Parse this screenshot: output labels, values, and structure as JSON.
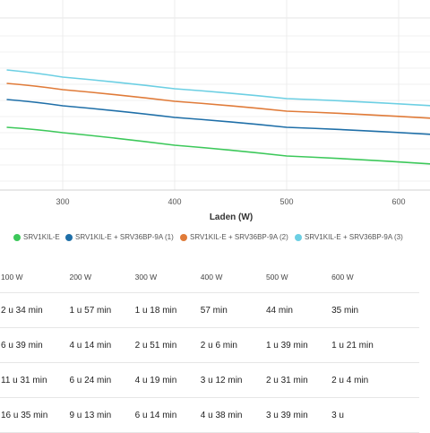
{
  "chart_data": {
    "type": "line",
    "xlabel": "Laden (W)",
    "x_ticks": [
      300,
      400,
      500,
      600
    ],
    "x_range": [
      250,
      630
    ],
    "grid": true,
    "legend_position": "bottom",
    "series": [
      {
        "name": "SRV1KIL-E",
        "color": "#3cc85a",
        "points": [
          [
            250,
            142
          ],
          [
            300,
            148
          ],
          [
            400,
            162
          ],
          [
            500,
            174
          ],
          [
            630,
            183
          ]
        ]
      },
      {
        "name": "SRV1KIL-E + SRV36BP-9A (1)",
        "color": "#1f6fa8",
        "points": [
          [
            250,
            111
          ],
          [
            300,
            118
          ],
          [
            400,
            131
          ],
          [
            500,
            142
          ],
          [
            630,
            150
          ]
        ]
      },
      {
        "name": "SRV1KIL-E + SRV36BP-9A (2)",
        "color": "#e07b39",
        "points": [
          [
            250,
            93
          ],
          [
            300,
            100
          ],
          [
            400,
            113
          ],
          [
            500,
            124
          ],
          [
            630,
            132
          ]
        ]
      },
      {
        "name": "SRV1KIL-E + SRV36BP-9A (3)",
        "color": "#6ccfe3",
        "points": [
          [
            250,
            78
          ],
          [
            300,
            86
          ],
          [
            400,
            99
          ],
          [
            500,
            110
          ],
          [
            630,
            118
          ]
        ]
      }
    ]
  },
  "table": {
    "headers": [
      "100 W",
      "200 W",
      "300 W",
      "400 W",
      "500 W",
      "600 W",
      ""
    ],
    "rows": [
      [
        "2 u 34 min",
        "1 u 57 min",
        "1 u 18 min",
        "57 min",
        "44 min",
        "35 min",
        ""
      ],
      [
        "6 u 39 min",
        "4 u 14 min",
        "2 u 51 min",
        "2 u 6 min",
        "1 u 39 min",
        "1 u 21 min",
        ""
      ],
      [
        "11 u 31 min",
        "6 u 24 min",
        "4 u 19 min",
        "3 u 12 min",
        "2 u 31 min",
        "2 u 4 min",
        ""
      ],
      [
        "16 u 35 min",
        "9 u 13 min",
        "6 u 14 min",
        "4 u 38 min",
        "3 u 39 min",
        "3 u",
        ""
      ]
    ]
  }
}
